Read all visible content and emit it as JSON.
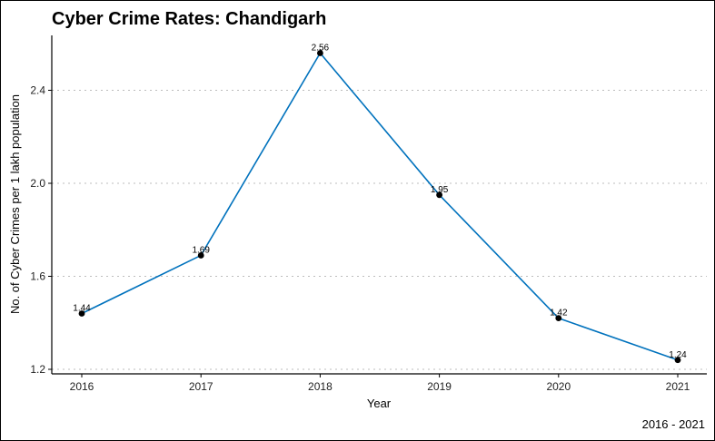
{
  "chart_data": {
    "type": "line",
    "title": "Cyber Crime Rates: Chandigarh",
    "xlabel": "Year",
    "ylabel": "No. of Cyber Crimes per 1 lakh population",
    "caption": "2016 - 2021",
    "x": [
      "2016",
      "2017",
      "2018",
      "2019",
      "2020",
      "2021"
    ],
    "series": [
      {
        "values": [
          1.44,
          1.69,
          2.56,
          1.95,
          1.42,
          1.24
        ],
        "labels": [
          "1.44",
          "1.69",
          "2.56",
          "1.95",
          "1.42",
          "1.24"
        ],
        "color": "#0072BD"
      }
    ],
    "yticks": [
      "1.2",
      "1.6",
      "2.0",
      "2.4"
    ],
    "ylim": [
      1.2,
      2.6
    ],
    "grid": "horizontal-dotted",
    "legend": "none"
  }
}
